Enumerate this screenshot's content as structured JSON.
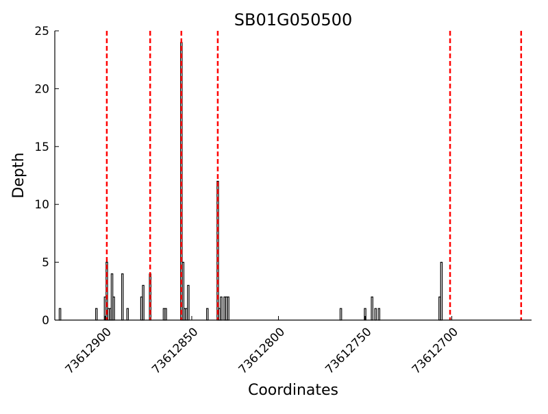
{
  "chart_data": {
    "type": "bar",
    "title": "SB01G050500",
    "xlabel": "Coordinates",
    "ylabel": "Depth",
    "x_axis_direction": "descending",
    "xlim": [
      73612929,
      73612654
    ],
    "ylim": [
      0,
      25
    ],
    "x_ticks": [
      73612900,
      73612850,
      73612800,
      73612750,
      73612700
    ],
    "y_ticks": [
      0,
      5,
      10,
      15,
      20,
      25
    ],
    "grid": false,
    "bar_fill": "#ffffff",
    "bar_edge": "#000000",
    "marker_color": "#ff0000",
    "marker_style": "dashed",
    "bars": [
      {
        "x": 73612926,
        "y": 1
      },
      {
        "x": 73612905,
        "y": 1
      },
      {
        "x": 73612900,
        "y": 2
      },
      {
        "x": 73612899,
        "y": 5
      },
      {
        "x": 73612898,
        "y": 1
      },
      {
        "x": 73612897,
        "y": 1
      },
      {
        "x": 73612896,
        "y": 4
      },
      {
        "x": 73612895,
        "y": 2
      },
      {
        "x": 73612890,
        "y": 4
      },
      {
        "x": 73612887,
        "y": 1
      },
      {
        "x": 73612879,
        "y": 2
      },
      {
        "x": 73612878,
        "y": 3
      },
      {
        "x": 73612874,
        "y": 4
      },
      {
        "x": 73612866,
        "y": 1
      },
      {
        "x": 73612865,
        "y": 1
      },
      {
        "x": 73612856,
        "y": 24
      },
      {
        "x": 73612855,
        "y": 5
      },
      {
        "x": 73612854,
        "y": 1
      },
      {
        "x": 73612853,
        "y": 1
      },
      {
        "x": 73612852,
        "y": 3
      },
      {
        "x": 73612841,
        "y": 1
      },
      {
        "x": 73612835,
        "y": 12
      },
      {
        "x": 73612834,
        "y": 1
      },
      {
        "x": 73612833,
        "y": 2
      },
      {
        "x": 73612831,
        "y": 2
      },
      {
        "x": 73612830,
        "y": 2
      },
      {
        "x": 73612829,
        "y": 2
      },
      {
        "x": 73612764,
        "y": 1
      },
      {
        "x": 73612750,
        "y": 1
      },
      {
        "x": 73612746,
        "y": 2
      },
      {
        "x": 73612744,
        "y": 1
      },
      {
        "x": 73612742,
        "y": 1
      },
      {
        "x": 73612707,
        "y": 2
      },
      {
        "x": 73612706,
        "y": 5
      }
    ],
    "markers": [
      73612899,
      73612874,
      73612856,
      73612835,
      73612701,
      73612660
    ]
  }
}
